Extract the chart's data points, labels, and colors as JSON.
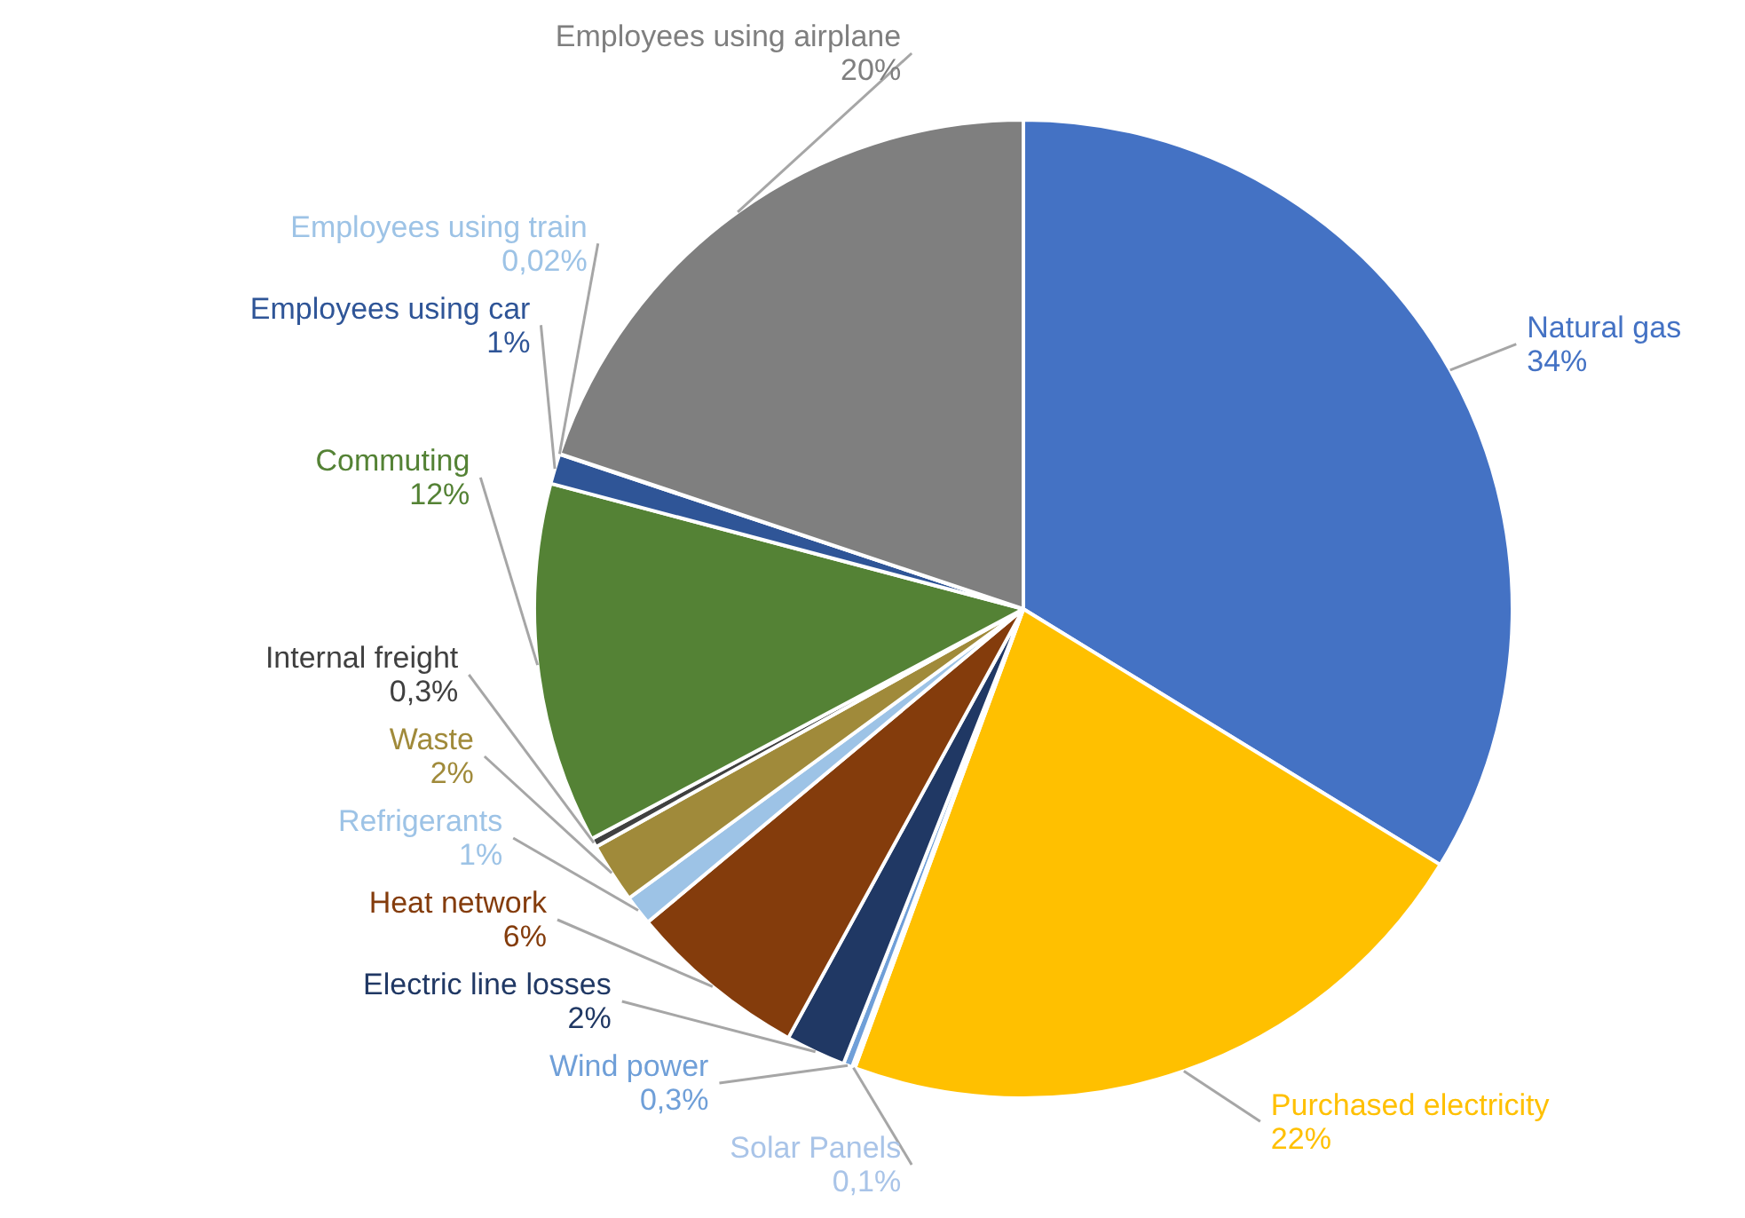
{
  "chart_data": {
    "type": "pie",
    "categories": [
      "Natural gas",
      "Purchased electricity",
      "Solar Panels",
      "Wind power",
      "Electric line losses",
      "Heat network",
      "Refrigerants",
      "Waste",
      "Internal freight",
      "Commuting",
      "Employees using car",
      "Employees using train",
      "Employees using airplane"
    ],
    "values": [
      34,
      22,
      0.1,
      0.3,
      2,
      6,
      1,
      2,
      0.3,
      12,
      1,
      0.02,
      20
    ],
    "value_labels": [
      "34%",
      "22%",
      "0,1%",
      "0,3%",
      "2%",
      "6%",
      "1%",
      "2%",
      "0,3%",
      "12%",
      "1%",
      "0,02%",
      "20%"
    ],
    "colors": [
      "#4472c4",
      "#ffc000",
      "#a9c4e8",
      "#6f9fd8",
      "#203864",
      "#843c0c",
      "#9dc3e6",
      "#a08a3a",
      "#404040",
      "#548235",
      "#2f5597",
      "#9dc3e6",
      "#7f7f7f"
    ],
    "legend": false
  }
}
